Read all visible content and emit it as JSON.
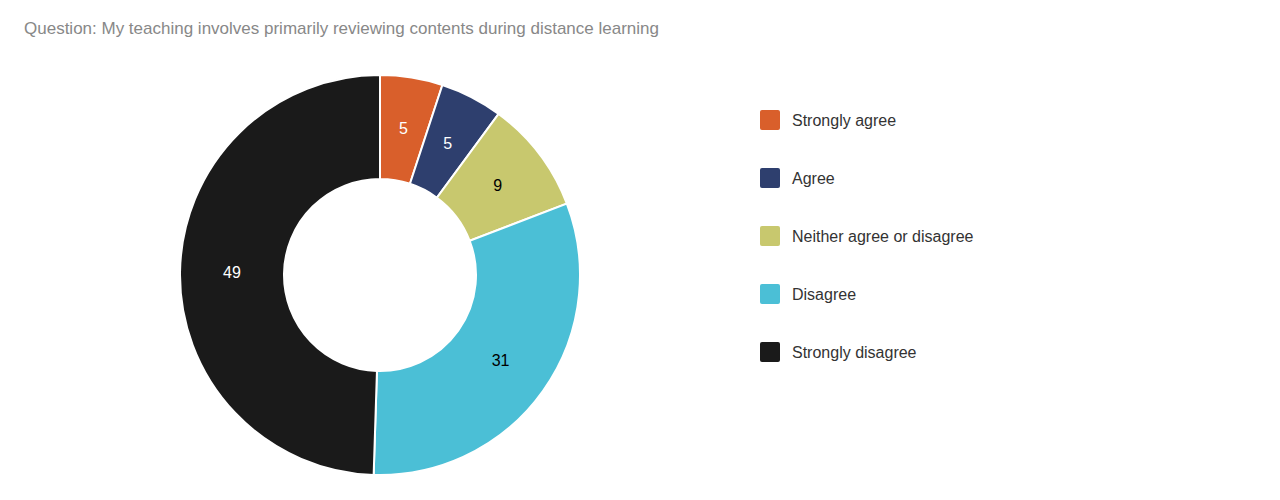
{
  "chart_data": {
    "type": "donut",
    "title": "Question: My teaching involves primarily reviewing contents during distance learning",
    "categories": [
      "Strongly agree",
      "Agree",
      "Neither agree or disagree",
      "Disagree",
      "Strongly disagree"
    ],
    "values": [
      5,
      5,
      9,
      31,
      49
    ],
    "colors": [
      "#d95f2b",
      "#2e3f6e",
      "#c8c86e",
      "#4bbfd6",
      "#1a1a1a"
    ],
    "data_labels": true,
    "legend": "right"
  }
}
